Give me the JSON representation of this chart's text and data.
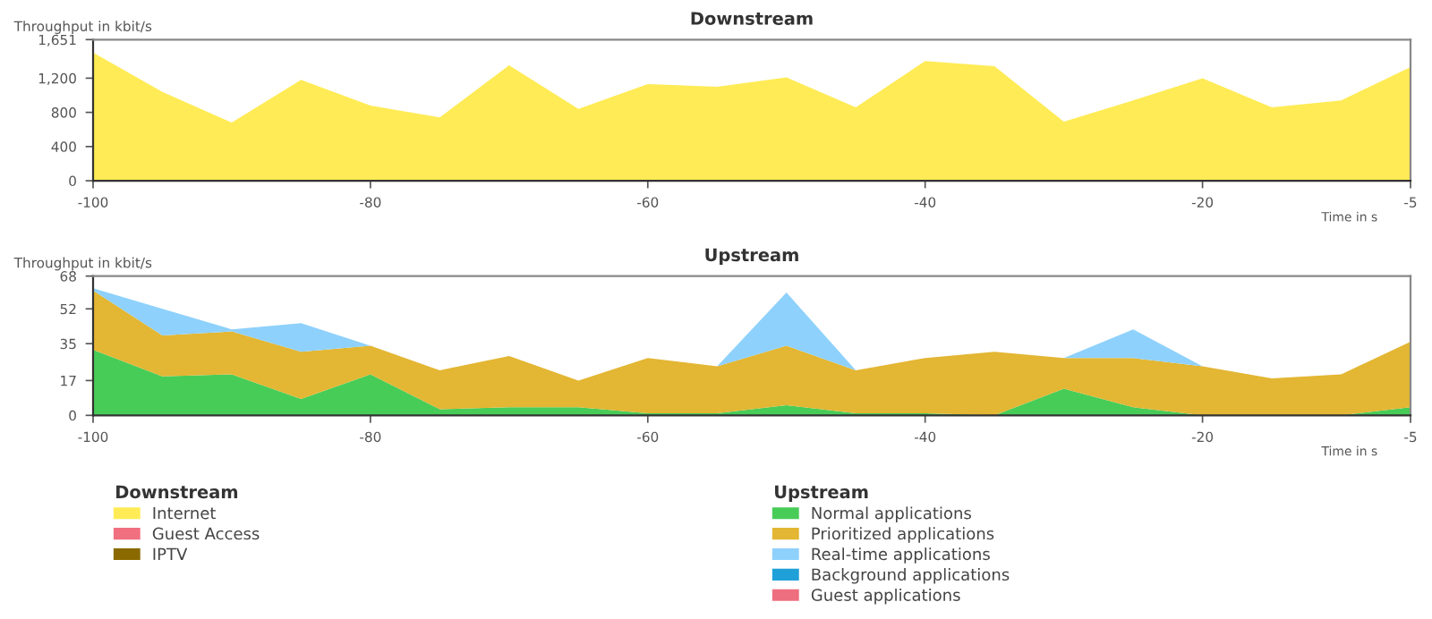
{
  "chart_data": [
    {
      "type": "area",
      "stacked": true,
      "title": "Downstream",
      "ylabel": "Throughput in kbit/s",
      "xlabel": "Time in s",
      "legend_title": "Downstream",
      "legend": "bottom left",
      "x": [
        -100,
        -95,
        -90,
        -85,
        -80,
        -75,
        -70,
        -65,
        -60,
        -55,
        -50,
        -45,
        -40,
        -35,
        -30,
        -25,
        -20,
        -15,
        -10,
        -5
      ],
      "xlim": [
        -100,
        -5
      ],
      "xticks": [
        -100,
        -80,
        -60,
        -40,
        -20,
        -5
      ],
      "ylim": [
        0,
        1651
      ],
      "yticks": [
        0,
        400,
        800,
        {
          "value": 1200,
          "label": "1,200"
        },
        {
          "value": 1651,
          "label": "1,651"
        }
      ],
      "series": [
        {
          "name": "Internet",
          "color": "#ffeb55",
          "values": [
            1500,
            1040,
            680,
            1180,
            880,
            740,
            1350,
            840,
            1130,
            1100,
            1210,
            860,
            1400,
            1340,
            690,
            940,
            1200,
            860,
            940,
            1330
          ]
        },
        {
          "name": "Guest Access",
          "color": "#f07080",
          "values": [
            null,
            null,
            null,
            null,
            null,
            null,
            null,
            null,
            null,
            null,
            null,
            null,
            null,
            null,
            null,
            null,
            null,
            null,
            null,
            null
          ]
        },
        {
          "name": "IPTV",
          "color": "#8a6a00",
          "values": [
            null,
            null,
            null,
            null,
            null,
            null,
            null,
            null,
            null,
            null,
            null,
            null,
            null,
            null,
            null,
            null,
            null,
            null,
            null,
            null
          ]
        }
      ]
    },
    {
      "type": "area",
      "stacked": true,
      "title": "Upstream",
      "ylabel": "Throughput in kbit/s",
      "xlabel": "Time in s",
      "legend_title": "Upstream",
      "legend": "bottom",
      "x": [
        -100,
        -95,
        -90,
        -85,
        -80,
        -75,
        -70,
        -65,
        -60,
        -55,
        -50,
        -45,
        -40,
        -35,
        -30,
        -25,
        -20,
        -15,
        -10,
        -5
      ],
      "xlim": [
        -100,
        -5
      ],
      "xticks": [
        -100,
        -80,
        -60,
        -40,
        -20,
        -5
      ],
      "ylim": [
        0,
        68
      ],
      "yticks": [
        0,
        17,
        35,
        52,
        68
      ],
      "series": [
        {
          "name": "Normal applications",
          "color": "#48cc58",
          "values": [
            32,
            19,
            20,
            8,
            20,
            3,
            4,
            4,
            1,
            1,
            5,
            1,
            1,
            0,
            13,
            4,
            0,
            0,
            0,
            4
          ]
        },
        {
          "name": "Prioritized applications",
          "color": "#e3b633",
          "values": [
            29,
            20,
            21,
            23,
            14,
            19,
            25,
            13,
            27,
            23,
            29,
            21,
            27,
            31,
            15,
            24,
            24,
            18,
            20,
            32
          ]
        },
        {
          "name": "Real-time applications",
          "color": "#8ed1fc",
          "values": [
            1,
            13,
            1,
            14,
            0,
            0,
            0,
            0,
            0,
            0,
            26,
            0,
            0,
            0,
            0,
            14,
            0,
            0,
            0,
            0
          ]
        },
        {
          "name": "Background applications",
          "color": "#1fa0d8",
          "values": [
            null,
            null,
            null,
            null,
            null,
            null,
            null,
            null,
            null,
            null,
            null,
            null,
            null,
            null,
            null,
            null,
            null,
            null,
            null,
            null
          ]
        },
        {
          "name": "Guest applications",
          "color": "#ee6f7f",
          "values": [
            null,
            null,
            null,
            null,
            null,
            null,
            null,
            null,
            null,
            null,
            null,
            null,
            null,
            null,
            null,
            null,
            null,
            null,
            null,
            null
          ]
        }
      ]
    }
  ]
}
